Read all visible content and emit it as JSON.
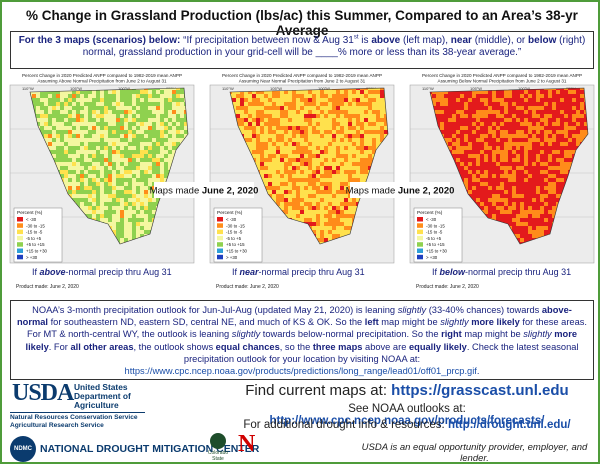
{
  "title": "% Change in Grassland Production (lbs/ac) this Summer, Compared to an Area’s 38-yr Average",
  "intro": {
    "lead": "For the 3 maps (scenarios) below:",
    "parts": [
      {
        "t": " “If precipitation between now & Aug 31",
        "s": "n"
      },
      {
        "t": "st",
        "s": "sup"
      },
      {
        "t": " is ",
        "s": "n"
      },
      {
        "t": "above",
        "s": "b"
      },
      {
        "t": " (left map), ",
        "s": "n"
      },
      {
        "t": "near",
        "s": "b"
      },
      {
        "t": " (middle), or ",
        "s": "n"
      },
      {
        "t": "below",
        "s": "b"
      },
      {
        "t": " (right) normal, grassland production in your grid-cell will be ____% more or less than its 38-year average.”",
        "s": "n"
      }
    ]
  },
  "maps": [
    {
      "heading": [
        "Percent Change in 2020 Predicted ANPP compared to 1982-2019 mean ANPP",
        "Assuming Above Normal Precipitation from June 2 to August 31"
      ],
      "caption": [
        {
          "t": "If ",
          "s": "n"
        },
        {
          "t": "above",
          "s": "bi"
        },
        {
          "t": "-normal precip thru Aug 31",
          "s": "n"
        }
      ],
      "product": "Product made: June 2, 2020"
    },
    {
      "heading": [
        "Percent Change in 2020 Predicted ANPP compared to 1982-2019 mean ANPP",
        "Assuming Near Normal Precipitation from June 2 to August 31"
      ],
      "caption": [
        {
          "t": "If ",
          "s": "n"
        },
        {
          "t": "near",
          "s": "bi"
        },
        {
          "t": "-normal precip thru Aug 31",
          "s": "n"
        }
      ],
      "product": "Product made: June 2, 2020"
    },
    {
      "heading": [
        "Percent Change in 2020 Predicted ANPP compared to 1982-2019 mean ANPP",
        "Assuming Below Normal Precipitation from June 2 to August 31"
      ],
      "caption": [
        {
          "t": "If ",
          "s": "n"
        },
        {
          "t": "below",
          "s": "bi"
        },
        {
          "t": "-normal precip thru Aug 31",
          "s": "n"
        }
      ],
      "product": "Product made: June 2, 2020"
    }
  ],
  "legend": {
    "title": "Percent (%)",
    "labels": [
      "< -30",
      "-30 to -15",
      "-15 to -5",
      "-5 to +5",
      "+5 to +15",
      "+15 to +30",
      "> +30"
    ],
    "colors": [
      "#e31a1c",
      "#ff8c1a",
      "#ffe14d",
      "#f4f7a0",
      "#8fd14f",
      "#2e9fd8",
      "#1f3fbf"
    ]
  },
  "longitudes": [
    "110°W",
    "105°W",
    "100°W",
    "95°W"
  ],
  "stamps": [
    {
      "text": "Maps made ",
      "date": "June 2, 2020"
    },
    {
      "text": "Maps made ",
      "date": "June 2, 2020"
    }
  ],
  "outlook": [
    {
      "t": "NOAA’s 3-month precipitation outlook for Jun-Jul-Aug (updated May 21, 2020) is leaning ",
      "s": "n"
    },
    {
      "t": "slightly",
      "s": "i"
    },
    {
      "t": " (33-40% chances) towards ",
      "s": "n"
    },
    {
      "t": "above-normal",
      "s": "b"
    },
    {
      "t": " for southeastern ND, eastern SD, central NE, and much of KS & OK. So the ",
      "s": "n"
    },
    {
      "t": "left",
      "s": "b"
    },
    {
      "t": " map might be ",
      "s": "n"
    },
    {
      "t": "slightly",
      "s": "i"
    },
    {
      "t": " ",
      "s": "n"
    },
    {
      "t": "more likely",
      "s": "b"
    },
    {
      "t": " for these areas. For MT & north-central WY, the outlook is leaning ",
      "s": "n"
    },
    {
      "t": "slightly",
      "s": "i"
    },
    {
      "t": " towards below-normal precipitation. So the ",
      "s": "n"
    },
    {
      "t": "right",
      "s": "b"
    },
    {
      "t": " map might be ",
      "s": "n"
    },
    {
      "t": "slightly",
      "s": "i"
    },
    {
      "t": " ",
      "s": "n"
    },
    {
      "t": "more likely",
      "s": "b"
    },
    {
      "t": ". For ",
      "s": "n"
    },
    {
      "t": "all other areas",
      "s": "b"
    },
    {
      "t": ", the outlook shows ",
      "s": "n"
    },
    {
      "t": "equal chances",
      "s": "b"
    },
    {
      "t": ", so the ",
      "s": "n"
    },
    {
      "t": "three maps",
      "s": "b"
    },
    {
      "t": " above are ",
      "s": "n"
    },
    {
      "t": "equally likely",
      "s": "b"
    },
    {
      "t": ". Check the latest seasonal precipitation outlook for your location by visiting NOAA at: ",
      "s": "n"
    },
    {
      "t": "https://www.cpc.ncep.noaa.gov/products/predictions/long_range/lead01/off01_prcp.gif",
      "s": "a"
    },
    {
      "t": ".",
      "s": "n"
    }
  ],
  "usda": {
    "mark": "USDA",
    "lines": [
      "United States",
      "Department of",
      "Agriculture"
    ],
    "services": [
      "Natural Resources Conservation Service",
      "Agricultural Research Service"
    ]
  },
  "links": [
    {
      "label": "Find current maps at: ",
      "url": "https://grasscast.unl.edu"
    },
    {
      "label": "See NOAA outlooks at: ",
      "url": "http://www.cpc.ncep.noaa.gov/products/forecasts/"
    },
    {
      "label": "For additional drought info & resources:  ",
      "url": "http://drought.unl.edu/"
    }
  ],
  "ndmc": {
    "mark": "NDMC",
    "name": "NATIONAL DROUGHT MITIGATION CENTER"
  },
  "csu": "Colorado State",
  "unl": "N",
  "equal_opportunity": "USDA is an equal opportunity provider, employer, and lender."
}
